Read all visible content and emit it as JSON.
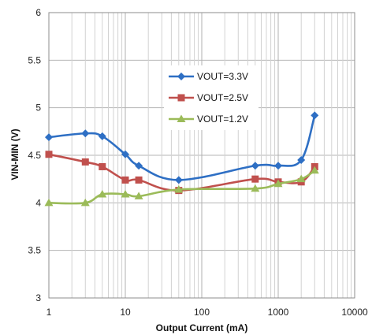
{
  "chart_data": {
    "type": "line",
    "title": "",
    "xlabel": "Output Current (mA)",
    "ylabel": "VIN-MIN (V)",
    "xscale": "log",
    "xlim": [
      1,
      10000
    ],
    "ylim": [
      3,
      6
    ],
    "grid": true,
    "legend": "inside-center",
    "x_tick_labels": [
      "1",
      "10",
      "100",
      "1000",
      "10000"
    ],
    "y_tick_labels": [
      "3",
      "3.5",
      "4",
      "4.5",
      "5",
      "5.5",
      "6"
    ],
    "series": [
      {
        "name": "VOUT=3.3V",
        "color": "#2e6fc4",
        "marker": "diamond",
        "x": [
          1,
          3,
          5,
          10,
          15,
          50,
          500,
          1000,
          2000,
          3000
        ],
        "y": [
          4.69,
          4.73,
          4.7,
          4.51,
          4.39,
          4.24,
          4.39,
          4.39,
          4.45,
          4.92
        ]
      },
      {
        "name": "VOUT=2.5V",
        "color": "#c0504d",
        "marker": "square",
        "x": [
          1,
          3,
          5,
          10,
          15,
          50,
          500,
          1000,
          2000,
          3000
        ],
        "y": [
          4.51,
          4.43,
          4.38,
          4.24,
          4.24,
          4.13,
          4.25,
          4.22,
          4.22,
          4.38
        ]
      },
      {
        "name": "VOUT=1.2V",
        "color": "#9bbb59",
        "marker": "triangle",
        "x": [
          1,
          3,
          5,
          10,
          15,
          50,
          500,
          1000,
          2000,
          3000
        ],
        "y": [
          4.0,
          4.0,
          4.09,
          4.09,
          4.07,
          4.14,
          4.15,
          4.2,
          4.25,
          4.34
        ]
      }
    ]
  }
}
